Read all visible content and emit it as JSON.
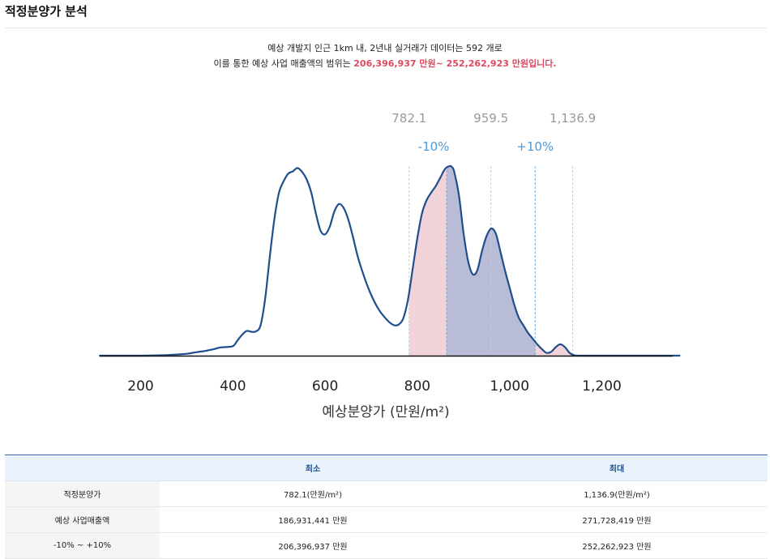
{
  "page_title": "적정분양가 분석",
  "summary": {
    "line1": "예상 개발지 인근 1km 내, 2년내 실거래가 데이터는 592 개로",
    "line2_prefix": "이를 통한 예상 사업 매출액의 범위는 ",
    "line2_highlight": "206,396,937 만원~ 252,262,923 만원입니다."
  },
  "chart_data": {
    "type": "area",
    "xlabel": "예상분양가 (만원/m²)",
    "ylabel": "",
    "xlim": [
      110,
      1370
    ],
    "ylim": [
      0,
      1.0
    ],
    "x_ticks": [
      200,
      400,
      600,
      800,
      1000,
      1200
    ],
    "x_tick_labels": [
      "200",
      "400",
      "600",
      "800",
      "1,000",
      "1,200"
    ],
    "density": {
      "x": [
        110,
        150,
        200,
        250,
        270,
        300,
        320,
        340,
        360,
        370,
        380,
        400,
        410,
        420,
        430,
        440,
        450,
        460,
        470,
        480,
        490,
        500,
        510,
        520,
        530,
        540,
        550,
        560,
        570,
        580,
        590,
        600,
        610,
        620,
        630,
        640,
        650,
        660,
        670,
        680,
        690,
        700,
        710,
        720,
        730,
        740,
        750,
        760,
        770,
        780,
        790,
        800,
        810,
        820,
        830,
        840,
        850,
        860,
        870,
        875,
        880,
        890,
        900,
        910,
        920,
        930,
        940,
        950,
        960,
        970,
        980,
        990,
        1000,
        1010,
        1020,
        1030,
        1040,
        1050,
        1060,
        1070,
        1080,
        1090,
        1100,
        1110,
        1120,
        1130,
        1140,
        1150,
        1160,
        1170,
        1180,
        1200,
        1250,
        1300,
        1350,
        1370
      ],
      "y": [
        0,
        0,
        0,
        0.002,
        0.005,
        0.01,
        0.018,
        0.025,
        0.035,
        0.042,
        0.045,
        0.05,
        0.08,
        0.11,
        0.13,
        0.126,
        0.128,
        0.16,
        0.3,
        0.52,
        0.72,
        0.86,
        0.92,
        0.96,
        0.972,
        0.99,
        0.97,
        0.93,
        0.86,
        0.75,
        0.66,
        0.64,
        0.68,
        0.76,
        0.8,
        0.78,
        0.72,
        0.63,
        0.53,
        0.45,
        0.38,
        0.32,
        0.27,
        0.23,
        0.2,
        0.175,
        0.16,
        0.165,
        0.2,
        0.3,
        0.46,
        0.62,
        0.75,
        0.82,
        0.86,
        0.895,
        0.94,
        0.985,
        1.0,
        0.995,
        0.97,
        0.85,
        0.65,
        0.5,
        0.43,
        0.45,
        0.55,
        0.63,
        0.67,
        0.645,
        0.55,
        0.45,
        0.36,
        0.27,
        0.2,
        0.16,
        0.12,
        0.09,
        0.06,
        0.035,
        0.015,
        0.02,
        0.045,
        0.06,
        0.045,
        0.015,
        0.002,
        0,
        0,
        0,
        0,
        0,
        0,
        0,
        0,
        0
      ]
    },
    "markers": {
      "min": 782.1,
      "minus10": 863.55,
      "appropriate": 959.5,
      "plus10": 1055.45,
      "max": 1136.9
    },
    "marker_labels": {
      "min": "782.1",
      "appropriate": "959.5",
      "max": "1,136.9",
      "minus10": "-10%",
      "plus10": "+10%"
    },
    "colors": {
      "curve": "#1f4e8c",
      "range_fill": "#f2d3d9",
      "inner_fill": "#b8bcd6",
      "marker_text": "#999999",
      "pct_text": "#4d9ad8",
      "pct_line": "#6aaee0",
      "marker_line": "#cccccc"
    }
  },
  "table": {
    "headers": [
      "",
      "최소",
      "최대"
    ],
    "rows": [
      {
        "label": "적정분양가",
        "min": "782.1(만원/m²)",
        "max": "1,136.9(만원/m²)"
      },
      {
        "label": "예상 사업매출액",
        "min": "186,931,441 만원",
        "max": "271,728,419 만원"
      },
      {
        "label": "-10% ~ +10%",
        "min": "206,396,937 만원",
        "max": "252,262,923 만원"
      }
    ]
  }
}
